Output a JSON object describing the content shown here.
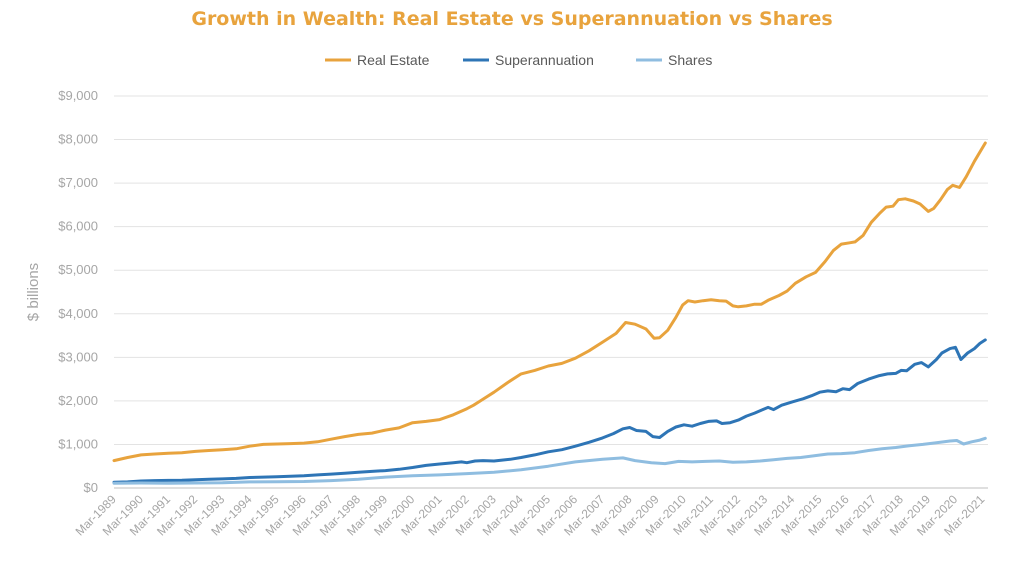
{
  "chart_data": {
    "type": "line",
    "title": "Growth in Wealth: Real Estate vs Superannuation vs Shares",
    "xlabel": "",
    "ylabel": "$ billions",
    "ylim": [
      0,
      9000
    ],
    "y_ticks": [
      "$0",
      "$1,000",
      "$2,000",
      "$3,000",
      "$4,000",
      "$5,000",
      "$6,000",
      "$7,000",
      "$8,000",
      "$9,000"
    ],
    "y_tick_values": [
      0,
      1000,
      2000,
      3000,
      4000,
      5000,
      6000,
      7000,
      8000,
      9000
    ],
    "grid": true,
    "legend_position": "top",
    "categories": [
      "Mar-1989",
      "Mar-1990",
      "Mar-1991",
      "Mar-1992",
      "Mar-1993",
      "Mar-1994",
      "Mar-1995",
      "Mar-1996",
      "Mar-1997",
      "Mar-1998",
      "Mar-1999",
      "Mar-2000",
      "Mar-2001",
      "Mar-2002",
      "Mar-2003",
      "Mar-2004",
      "Mar-2005",
      "Mar-2006",
      "Mar-2007",
      "Mar-2008",
      "Mar-2009",
      "Mar-2010",
      "Mar-2011",
      "Mar-2012",
      "Mar-2013",
      "Mar-2014",
      "Mar-2015",
      "Mar-2016",
      "Mar-2017",
      "Mar-2018",
      "Mar-2019",
      "Mar-2020",
      "Mar-2021"
    ],
    "series": [
      {
        "name": "Real Estate",
        "color": "#e8a33d",
        "values": [
          [
            1989.0,
            630
          ],
          [
            1989.5,
            700
          ],
          [
            1990.0,
            760
          ],
          [
            1990.5,
            780
          ],
          [
            1991.0,
            800
          ],
          [
            1991.5,
            810
          ],
          [
            1992.0,
            840
          ],
          [
            1992.5,
            860
          ],
          [
            1993.0,
            880
          ],
          [
            1993.5,
            900
          ],
          [
            1994.0,
            960
          ],
          [
            1994.5,
            1000
          ],
          [
            1995.0,
            1010
          ],
          [
            1995.5,
            1020
          ],
          [
            1996.0,
            1030
          ],
          [
            1996.5,
            1060
          ],
          [
            1997.0,
            1120
          ],
          [
            1997.5,
            1180
          ],
          [
            1998.0,
            1230
          ],
          [
            1998.5,
            1260
          ],
          [
            1999.0,
            1330
          ],
          [
            1999.5,
            1380
          ],
          [
            2000.0,
            1500
          ],
          [
            2000.5,
            1530
          ],
          [
            2001.0,
            1570
          ],
          [
            2001.5,
            1680
          ],
          [
            2002.0,
            1820
          ],
          [
            2002.25,
            1900
          ],
          [
            2002.5,
            2000
          ],
          [
            2003.0,
            2200
          ],
          [
            2003.5,
            2420
          ],
          [
            2004.0,
            2620
          ],
          [
            2004.5,
            2700
          ],
          [
            2005.0,
            2800
          ],
          [
            2005.5,
            2860
          ],
          [
            2006.0,
            2980
          ],
          [
            2006.5,
            3150
          ],
          [
            2007.0,
            3350
          ],
          [
            2007.5,
            3550
          ],
          [
            2007.85,
            3800
          ],
          [
            2008.2,
            3760
          ],
          [
            2008.6,
            3650
          ],
          [
            2008.9,
            3440
          ],
          [
            2009.1,
            3450
          ],
          [
            2009.4,
            3620
          ],
          [
            2009.7,
            3920
          ],
          [
            2009.95,
            4200
          ],
          [
            2010.15,
            4300
          ],
          [
            2010.4,
            4270
          ],
          [
            2010.7,
            4300
          ],
          [
            2011.0,
            4320
          ],
          [
            2011.3,
            4300
          ],
          [
            2011.55,
            4290
          ],
          [
            2011.8,
            4180
          ],
          [
            2012.0,
            4160
          ],
          [
            2012.3,
            4180
          ],
          [
            2012.6,
            4220
          ],
          [
            2012.85,
            4220
          ],
          [
            2013.1,
            4310
          ],
          [
            2013.5,
            4420
          ],
          [
            2013.8,
            4520
          ],
          [
            2014.1,
            4700
          ],
          [
            2014.5,
            4850
          ],
          [
            2014.85,
            4950
          ],
          [
            2015.2,
            5200
          ],
          [
            2015.5,
            5450
          ],
          [
            2015.8,
            5600
          ],
          [
            2016.1,
            5630
          ],
          [
            2016.3,
            5650
          ],
          [
            2016.6,
            5800
          ],
          [
            2016.9,
            6100
          ],
          [
            2017.2,
            6300
          ],
          [
            2017.45,
            6450
          ],
          [
            2017.7,
            6470
          ],
          [
            2017.9,
            6620
          ],
          [
            2018.15,
            6640
          ],
          [
            2018.45,
            6590
          ],
          [
            2018.7,
            6520
          ],
          [
            2019.0,
            6350
          ],
          [
            2019.2,
            6420
          ],
          [
            2019.45,
            6620
          ],
          [
            2019.7,
            6850
          ],
          [
            2019.9,
            6950
          ],
          [
            2020.15,
            6900
          ],
          [
            2020.4,
            7150
          ],
          [
            2020.7,
            7500
          ],
          [
            2021.1,
            7920
          ]
        ]
      },
      {
        "name": "Superannuation",
        "color": "#2e75b6",
        "values": [
          [
            1989.0,
            130
          ],
          [
            1989.5,
            140
          ],
          [
            1990.0,
            160
          ],
          [
            1990.5,
            170
          ],
          [
            1991.0,
            175
          ],
          [
            1991.5,
            180
          ],
          [
            1992.0,
            190
          ],
          [
            1992.5,
            200
          ],
          [
            1993.0,
            210
          ],
          [
            1993.5,
            220
          ],
          [
            1994.0,
            240
          ],
          [
            1994.5,
            250
          ],
          [
            1995.0,
            260
          ],
          [
            1995.5,
            270
          ],
          [
            1996.0,
            280
          ],
          [
            1996.5,
            300
          ],
          [
            1997.0,
            320
          ],
          [
            1997.5,
            340
          ],
          [
            1998.0,
            360
          ],
          [
            1998.5,
            380
          ],
          [
            1999.0,
            400
          ],
          [
            1999.5,
            430
          ],
          [
            2000.0,
            470
          ],
          [
            2000.5,
            520
          ],
          [
            2001.0,
            550
          ],
          [
            2001.5,
            580
          ],
          [
            2001.8,
            600
          ],
          [
            2002.0,
            580
          ],
          [
            2002.3,
            620
          ],
          [
            2002.6,
            630
          ],
          [
            2003.0,
            620
          ],
          [
            2003.3,
            640
          ],
          [
            2003.6,
            660
          ],
          [
            2004.0,
            700
          ],
          [
            2004.5,
            760
          ],
          [
            2005.0,
            830
          ],
          [
            2005.5,
            880
          ],
          [
            2006.0,
            960
          ],
          [
            2006.5,
            1050
          ],
          [
            2007.0,
            1150
          ],
          [
            2007.4,
            1250
          ],
          [
            2007.75,
            1360
          ],
          [
            2008.0,
            1390
          ],
          [
            2008.25,
            1320
          ],
          [
            2008.6,
            1300
          ],
          [
            2008.85,
            1180
          ],
          [
            2009.1,
            1160
          ],
          [
            2009.4,
            1300
          ],
          [
            2009.7,
            1400
          ],
          [
            2010.0,
            1450
          ],
          [
            2010.3,
            1420
          ],
          [
            2010.6,
            1480
          ],
          [
            2010.9,
            1530
          ],
          [
            2011.2,
            1540
          ],
          [
            2011.4,
            1480
          ],
          [
            2011.7,
            1500
          ],
          [
            2012.0,
            1560
          ],
          [
            2012.3,
            1650
          ],
          [
            2012.6,
            1720
          ],
          [
            2012.9,
            1800
          ],
          [
            2013.1,
            1850
          ],
          [
            2013.3,
            1800
          ],
          [
            2013.6,
            1900
          ],
          [
            2014.0,
            1980
          ],
          [
            2014.4,
            2050
          ],
          [
            2014.7,
            2120
          ],
          [
            2015.0,
            2200
          ],
          [
            2015.3,
            2230
          ],
          [
            2015.6,
            2210
          ],
          [
            2015.85,
            2280
          ],
          [
            2016.1,
            2260
          ],
          [
            2016.4,
            2400
          ],
          [
            2016.8,
            2500
          ],
          [
            2017.2,
            2580
          ],
          [
            2017.5,
            2620
          ],
          [
            2017.8,
            2630
          ],
          [
            2018.0,
            2700
          ],
          [
            2018.2,
            2690
          ],
          [
            2018.5,
            2840
          ],
          [
            2018.75,
            2880
          ],
          [
            2019.0,
            2780
          ],
          [
            2019.3,
            2950
          ],
          [
            2019.5,
            3100
          ],
          [
            2019.8,
            3200
          ],
          [
            2020.0,
            3230
          ],
          [
            2020.2,
            2950
          ],
          [
            2020.45,
            3100
          ],
          [
            2020.7,
            3200
          ],
          [
            2020.9,
            3320
          ],
          [
            2021.1,
            3400
          ]
        ]
      },
      {
        "name": "Shares",
        "color": "#8fbde0",
        "values": [
          [
            1989.0,
            110
          ],
          [
            1990.0,
            115
          ],
          [
            1991.0,
            110
          ],
          [
            1992.0,
            115
          ],
          [
            1993.0,
            120
          ],
          [
            1994.0,
            140
          ],
          [
            1995.0,
            145
          ],
          [
            1996.0,
            150
          ],
          [
            1997.0,
            170
          ],
          [
            1998.0,
            200
          ],
          [
            1999.0,
            250
          ],
          [
            2000.0,
            280
          ],
          [
            2001.0,
            300
          ],
          [
            2002.0,
            330
          ],
          [
            2003.0,
            360
          ],
          [
            2004.0,
            420
          ],
          [
            2005.0,
            500
          ],
          [
            2006.0,
            600
          ],
          [
            2007.0,
            660
          ],
          [
            2007.75,
            690
          ],
          [
            2008.2,
            630
          ],
          [
            2008.8,
            580
          ],
          [
            2009.3,
            560
          ],
          [
            2009.8,
            610
          ],
          [
            2010.3,
            600
          ],
          [
            2010.8,
            610
          ],
          [
            2011.3,
            620
          ],
          [
            2011.8,
            590
          ],
          [
            2012.3,
            600
          ],
          [
            2012.8,
            620
          ],
          [
            2013.3,
            650
          ],
          [
            2013.8,
            680
          ],
          [
            2014.3,
            700
          ],
          [
            2014.8,
            740
          ],
          [
            2015.3,
            780
          ],
          [
            2015.8,
            790
          ],
          [
            2016.3,
            810
          ],
          [
            2016.8,
            860
          ],
          [
            2017.3,
            900
          ],
          [
            2017.8,
            930
          ],
          [
            2018.3,
            970
          ],
          [
            2018.8,
            1000
          ],
          [
            2019.3,
            1040
          ],
          [
            2019.8,
            1080
          ],
          [
            2020.05,
            1090
          ],
          [
            2020.3,
            1010
          ],
          [
            2020.6,
            1060
          ],
          [
            2020.9,
            1100
          ],
          [
            2021.1,
            1140
          ]
        ]
      }
    ]
  }
}
